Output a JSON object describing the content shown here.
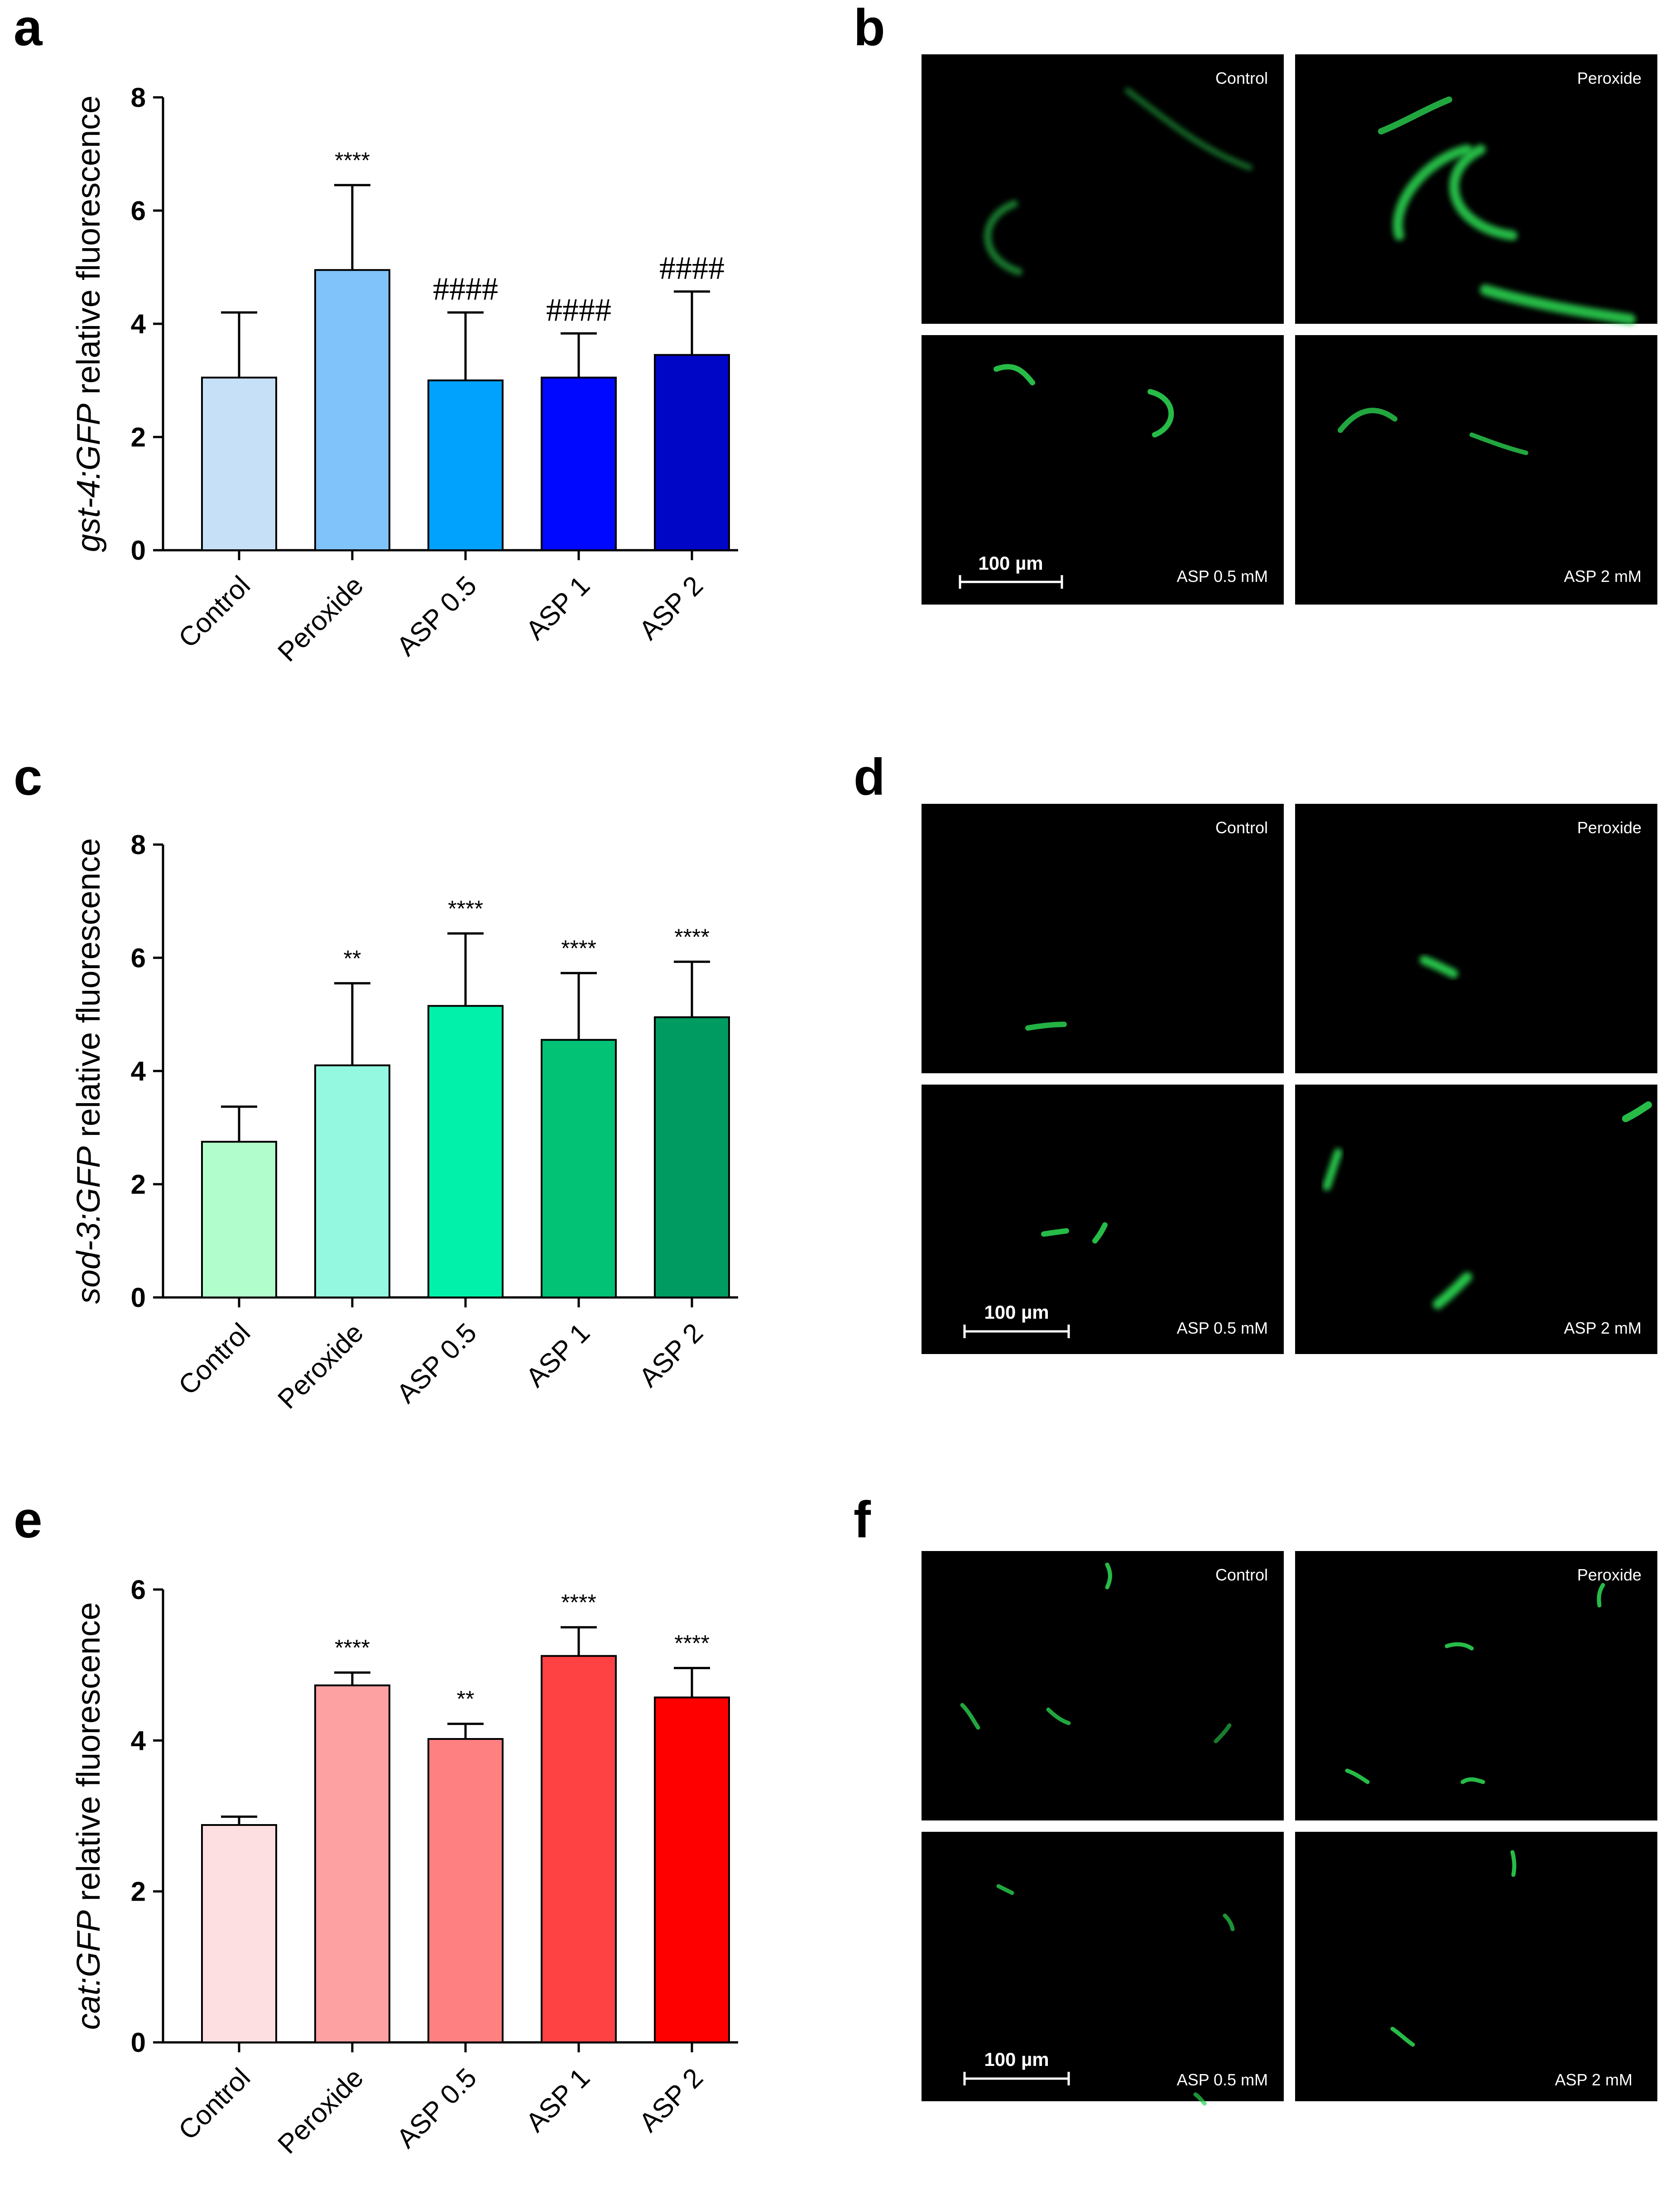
{
  "panel_letters": {
    "a": "a",
    "b": "b",
    "c": "c",
    "d": "d",
    "e": "e",
    "f": "f"
  },
  "chart_data": [
    {
      "panel": "a",
      "type": "bar",
      "title": "",
      "xlabel": "",
      "ylabel": {
        "gene": "gst-4:GFP",
        "suffix": " relative fluorescence"
      },
      "categories": [
        "Control",
        "Peroxide",
        "ASP 0.5",
        "ASP 1",
        "ASP 2"
      ],
      "values": [
        3.05,
        4.95,
        3.0,
        3.05,
        3.45
      ],
      "errors": [
        1.15,
        1.5,
        1.2,
        0.78,
        1.12
      ],
      "annotations": [
        "",
        "****",
        "####",
        "####",
        "####"
      ],
      "colors": [
        "#c6e0f8",
        "#80c2fa",
        "#00a2fe",
        "#0008ff",
        "#0006c6"
      ],
      "ylim": [
        0,
        8
      ],
      "yticks": [
        0,
        2,
        4,
        6,
        8
      ]
    },
    {
      "panel": "c",
      "type": "bar",
      "title": "",
      "xlabel": "",
      "ylabel": {
        "gene": "sod-3:GFP",
        "suffix": " relative fluorescence"
      },
      "categories": [
        "Control",
        "Peroxide",
        "ASP 0.5",
        "ASP 1",
        "ASP 2"
      ],
      "values": [
        2.75,
        4.1,
        5.15,
        4.55,
        4.95
      ],
      "errors": [
        0.62,
        1.45,
        1.28,
        1.18,
        0.98
      ],
      "annotations": [
        "",
        "**",
        "****",
        "****",
        "****"
      ],
      "colors": [
        "#b2fdcc",
        "#94f8e0",
        "#01f1aa",
        "#01c275",
        "#009b60"
      ],
      "ylim": [
        0,
        8
      ],
      "yticks": [
        0,
        2,
        4,
        6,
        8
      ]
    },
    {
      "panel": "e",
      "type": "bar",
      "title": "",
      "xlabel": "",
      "ylabel": {
        "gene": "cat:GFP",
        "suffix": " relative fluorescence"
      },
      "categories": [
        "Control",
        "Peroxide",
        "ASP 0.5",
        "ASP 1",
        "ASP 2"
      ],
      "values": [
        2.88,
        4.73,
        4.02,
        5.12,
        4.57
      ],
      "errors": [
        0.11,
        0.17,
        0.2,
        0.38,
        0.39
      ],
      "annotations": [
        "",
        "****",
        "**",
        "****",
        "****"
      ],
      "colors": [
        "#fedfe1",
        "#fea1a2",
        "#fe8081",
        "#fe4142",
        "#fe0000"
      ],
      "ylim": [
        0,
        6
      ],
      "yticks": [
        0,
        2,
        4,
        6
      ]
    }
  ],
  "micrographs": [
    {
      "panel": "b",
      "labels": [
        "Control",
        "Peroxide",
        "ASP 0.5 mM",
        "ASP 2 mM"
      ],
      "scale_bar": "100 µm",
      "accent": "#37e05a"
    },
    {
      "panel": "d",
      "labels": [
        "Control",
        "Peroxide",
        "ASP 0.5 mM",
        "ASP 2 mM"
      ],
      "scale_bar": "100 µm",
      "accent": "#37e05a"
    },
    {
      "panel": "f",
      "labels": [
        "Control",
        "Peroxide",
        "ASP 0.5 mM",
        "ASP 2 mM"
      ],
      "scale_bar": "100 µm",
      "accent": "#37e05a"
    }
  ]
}
